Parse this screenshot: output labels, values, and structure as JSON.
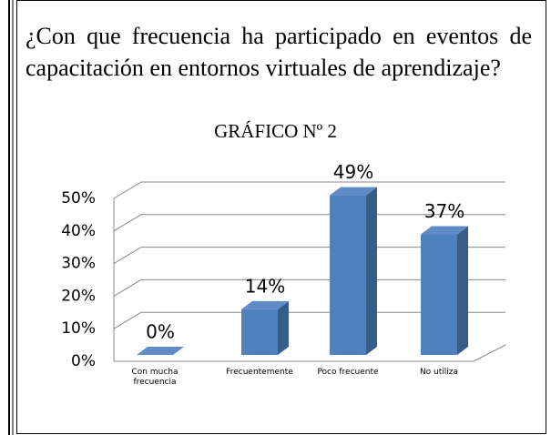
{
  "question": "¿Con que frecuencia ha participado en eventos de capacitación en entornos virtuales de aprendizaje?",
  "caption": "GRÁFICO Nº 2",
  "chart_data": {
    "type": "bar3d",
    "categories": [
      "Con mucha frecuencia",
      "Frecuentemente",
      "Poco frecuente",
      "No utiliza"
    ],
    "values": [
      0,
      14,
      49,
      37
    ],
    "value_labels": [
      "0%",
      "14%",
      "49%",
      "37%"
    ],
    "color": "#4f81bd",
    "ylim": [
      0,
      50
    ],
    "yticks": [
      {
        "value": 0,
        "label": "0%"
      },
      {
        "value": 10,
        "label": "10%"
      },
      {
        "value": 20,
        "label": "20%"
      },
      {
        "value": 30,
        "label": "30%"
      },
      {
        "value": 40,
        "label": "40%"
      },
      {
        "value": 50,
        "label": "50%"
      }
    ],
    "grid": true
  }
}
